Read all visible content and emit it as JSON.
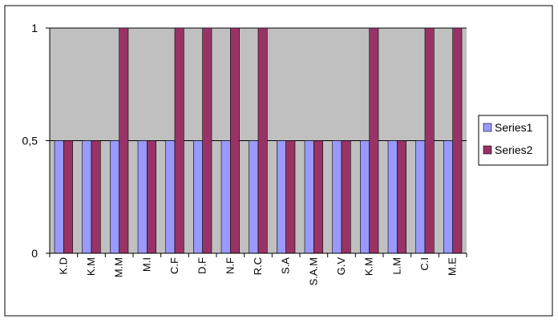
{
  "chart_data": {
    "type": "bar",
    "title": "",
    "xlabel": "",
    "ylabel": "",
    "ylim": [
      0,
      1
    ],
    "yticks": [
      0,
      0.5,
      1
    ],
    "ytick_labels": [
      "0",
      "0,5",
      "1"
    ],
    "grid": "horizontal major gridlines",
    "legend_position": "right",
    "categories": [
      "K.D",
      "K.M",
      "M.M",
      "M.I",
      "C.F",
      "D.F",
      "N.F",
      "R.C",
      "S.A",
      "S.A.M",
      "G.V",
      "K.M",
      "L.M",
      "C.I",
      "M.E"
    ],
    "series": [
      {
        "name": "Series1",
        "color": "#9999ff",
        "values": [
          0.5,
          0.5,
          0.5,
          0.5,
          0.5,
          0.5,
          0.5,
          0.5,
          0.5,
          0.5,
          0.5,
          0.5,
          0.5,
          0.5,
          0.5
        ]
      },
      {
        "name": "Series2",
        "color": "#993366",
        "values": [
          0.5,
          0.5,
          1,
          0.5,
          1,
          1,
          1,
          1,
          0.5,
          0.5,
          0.5,
          1,
          0.5,
          1,
          1
        ]
      }
    ],
    "colors": {
      "plot_background": "#c0c0c0",
      "chart_background": "#ffffff",
      "border": "#000000"
    }
  }
}
